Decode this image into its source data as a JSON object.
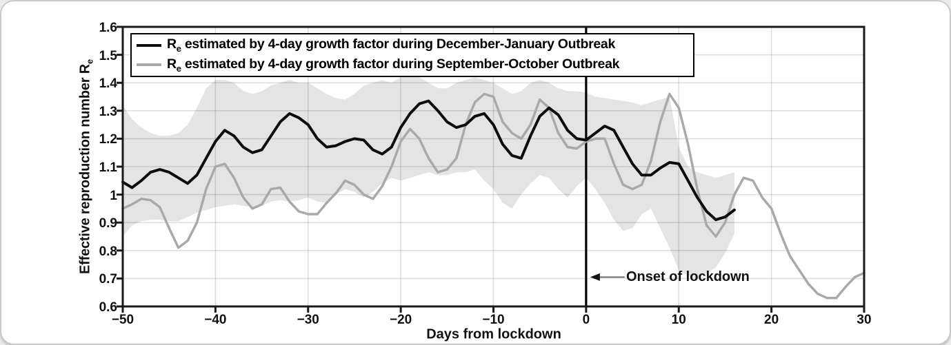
{
  "page": {
    "background": "#ebebeb",
    "card_background": "#ffffff"
  },
  "chart_data": {
    "type": "line",
    "title": "",
    "xlabel": "Days from lockdown",
    "ylabel": "Effective reproduction number Re",
    "ylabel_prefix": "Effective reproduction number R",
    "ylabel_sub": "e",
    "xlim": [
      -50,
      30
    ],
    "ylim": [
      0.6,
      1.6
    ],
    "grid": true,
    "legend_position": "top-left",
    "x_ticks": [
      -50,
      -40,
      -30,
      -20,
      -10,
      0,
      10,
      20,
      30
    ],
    "x_tick_labels": [
      "−50",
      "−40",
      "−30",
      "−20",
      "−10",
      "0",
      "10",
      "20",
      "30"
    ],
    "y_ticks": [
      0.6,
      0.7,
      0.8,
      0.9,
      1,
      1.1,
      1.2,
      1.3,
      1.4,
      1.5,
      1.6
    ],
    "y_tick_labels": [
      "0.6",
      "0.7",
      "0.8",
      "0.9",
      "1",
      "1.1",
      "1.2",
      "1.3",
      "1.4",
      "1.5",
      "1.6"
    ],
    "vline": {
      "x": 0,
      "color": "#000000"
    },
    "annotation": {
      "text": "Onset of lockdown",
      "x": 0,
      "y": 0.705
    },
    "axis_color": "#1a1a1a",
    "grid_color": "rgba(0,0,0,0.13)",
    "band": {
      "color": "#e4e4e4",
      "x": [
        -50,
        -49,
        -48,
        -47,
        -46,
        -45,
        -44,
        -43,
        -42,
        -41,
        -40,
        -39,
        -38,
        -37,
        -36,
        -35,
        -34,
        -33,
        -32,
        -31,
        -30,
        -29,
        -28,
        -27,
        -26,
        -25,
        -24,
        -23,
        -22,
        -21,
        -20,
        -19,
        -18,
        -17,
        -16,
        -15,
        -14,
        -13,
        -12,
        -11,
        -10,
        -9,
        -8,
        -7,
        -6,
        -5,
        -4,
        -3,
        -2,
        -1,
        0,
        1,
        2,
        3,
        4,
        5,
        6,
        7,
        8,
        9,
        10,
        11,
        12,
        13,
        14,
        15,
        16
      ],
      "upper": [
        1.32,
        1.27,
        1.24,
        1.22,
        1.21,
        1.21,
        1.22,
        1.25,
        1.31,
        1.38,
        1.41,
        1.41,
        1.4,
        1.37,
        1.36,
        1.37,
        1.39,
        1.4,
        1.41,
        1.4,
        1.4,
        1.38,
        1.36,
        1.345,
        1.34,
        1.36,
        1.39,
        1.4,
        1.41,
        1.4,
        1.42,
        1.42,
        1.42,
        1.4,
        1.38,
        1.38,
        1.4,
        1.41,
        1.42,
        1.41,
        1.4,
        1.38,
        1.36,
        1.37,
        1.4,
        1.41,
        1.4,
        1.38,
        1.37,
        1.37,
        1.365,
        1.35,
        1.345,
        1.34,
        1.335,
        1.33,
        1.32,
        1.33,
        1.34,
        1.35,
        1.17,
        1.1,
        1.08,
        1.07,
        1.06,
        1.07,
        1.08
      ],
      "lower": [
        0.85,
        0.89,
        0.905,
        0.91,
        0.91,
        0.905,
        0.905,
        0.92,
        0.935,
        0.945,
        0.955,
        0.96,
        0.965,
        0.96,
        0.955,
        0.96,
        0.975,
        0.98,
        0.975,
        0.98,
        0.99,
        0.975,
        0.97,
        1.0,
        1.02,
        1.01,
        0.99,
        1.01,
        1.04,
        1.06,
        1.05,
        1.06,
        1.07,
        1.08,
        1.07,
        1.07,
        1.08,
        1.08,
        1.09,
        1.05,
        1.02,
        0.97,
        0.95,
        1.0,
        1.04,
        1.07,
        1.06,
        1.02,
        0.99,
        1.03,
        1.06,
        1.02,
        0.97,
        0.91,
        0.87,
        0.88,
        0.93,
        0.95,
        0.88,
        0.81,
        0.73,
        0.71,
        0.7,
        0.72,
        0.74,
        0.79,
        0.86
      ]
    },
    "series": [
      {
        "name": "Re estimated by 4-day growth factor during December-January Outbreak",
        "legend": {
          "r": "R",
          "sub": "e",
          "rest": " estimated by 4-day growth factor during December-January Outbreak"
        },
        "color": "#0d0d0d",
        "line_width": 4,
        "x": [
          -50,
          -49,
          -48,
          -47,
          -46,
          -45,
          -44,
          -43,
          -42,
          -41,
          -40,
          -39,
          -38,
          -37,
          -36,
          -35,
          -34,
          -33,
          -32,
          -31,
          -30,
          -29,
          -28,
          -27,
          -26,
          -25,
          -24,
          -23,
          -22,
          -21,
          -20,
          -19,
          -18,
          -17,
          -16,
          -15,
          -14,
          -13,
          -12,
          -11,
          -10,
          -9,
          -8,
          -7,
          -6,
          -5,
          -4,
          -3,
          -2,
          -1,
          0,
          1,
          2,
          3,
          4,
          5,
          6,
          7,
          8,
          9,
          10,
          11,
          12,
          13,
          14,
          15,
          16
        ],
        "y": [
          1.045,
          1.025,
          1.05,
          1.08,
          1.09,
          1.08,
          1.06,
          1.04,
          1.07,
          1.13,
          1.19,
          1.23,
          1.21,
          1.17,
          1.15,
          1.16,
          1.21,
          1.26,
          1.29,
          1.275,
          1.25,
          1.2,
          1.17,
          1.175,
          1.19,
          1.2,
          1.195,
          1.16,
          1.145,
          1.17,
          1.24,
          1.29,
          1.325,
          1.335,
          1.3,
          1.26,
          1.24,
          1.25,
          1.28,
          1.29,
          1.25,
          1.18,
          1.14,
          1.13,
          1.21,
          1.28,
          1.31,
          1.285,
          1.23,
          1.2,
          1.195,
          1.22,
          1.245,
          1.23,
          1.17,
          1.11,
          1.07,
          1.07,
          1.095,
          1.115,
          1.11,
          1.05,
          0.99,
          0.94,
          0.91,
          0.92,
          0.945
        ]
      },
      {
        "name": "Re estimated by 4-day growth factor during September-October Outbreak",
        "legend": {
          "r": "R",
          "sub": "e",
          "rest": " estimated by 4-day growth factor during September-October Outbreak"
        },
        "color": "#a9a9a9",
        "line_width": 3.5,
        "x": [
          -50,
          -49,
          -48,
          -47,
          -46,
          -45,
          -44,
          -43,
          -42,
          -41,
          -40,
          -39,
          -38,
          -37,
          -36,
          -35,
          -34,
          -33,
          -32,
          -31,
          -30,
          -29,
          -28,
          -27,
          -26,
          -25,
          -24,
          -23,
          -22,
          -21,
          -20,
          -19,
          -18,
          -17,
          -16,
          -15,
          -14,
          -13,
          -12,
          -11,
          -10,
          -9,
          -8,
          -7,
          -6,
          -5,
          -4,
          -3,
          -2,
          -1,
          0,
          1,
          2,
          3,
          4,
          5,
          6,
          7,
          8,
          9,
          10,
          11,
          12,
          13,
          14,
          15,
          16,
          17,
          18,
          19,
          20,
          21,
          22,
          23,
          24,
          25,
          26,
          27,
          28,
          29,
          30
        ],
        "y": [
          0.95,
          0.965,
          0.985,
          0.98,
          0.955,
          0.88,
          0.81,
          0.835,
          0.9,
          1.02,
          1.1,
          1.11,
          1.06,
          0.99,
          0.95,
          0.965,
          1.02,
          1.025,
          0.975,
          0.94,
          0.93,
          0.93,
          0.97,
          1.005,
          1.05,
          1.035,
          1.0,
          0.985,
          1.03,
          1.1,
          1.19,
          1.235,
          1.2,
          1.13,
          1.08,
          1.09,
          1.13,
          1.25,
          1.33,
          1.36,
          1.35,
          1.26,
          1.22,
          1.2,
          1.25,
          1.34,
          1.31,
          1.22,
          1.17,
          1.165,
          1.19,
          1.2,
          1.2,
          1.11,
          1.035,
          1.02,
          1.035,
          1.12,
          1.26,
          1.36,
          1.31,
          1.18,
          1.02,
          0.89,
          0.85,
          0.9,
          1.0,
          1.06,
          1.05,
          0.99,
          0.95,
          0.86,
          0.78,
          0.73,
          0.68,
          0.645,
          0.63,
          0.63,
          0.67,
          0.705,
          0.72
        ]
      }
    ]
  }
}
